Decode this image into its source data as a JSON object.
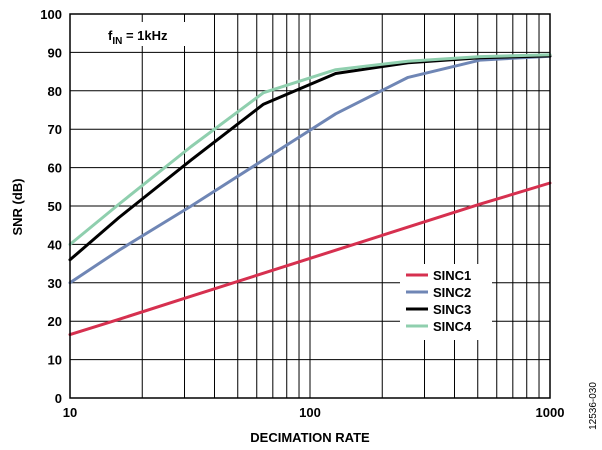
{
  "chart_data": {
    "type": "line",
    "title": "",
    "xlabel": "DECIMATION RATE",
    "ylabel": "SNR (dB)",
    "x_scale": "log",
    "xlim": [
      10,
      1000
    ],
    "ylim": [
      0,
      100
    ],
    "x_ticks": [
      10,
      100,
      1000
    ],
    "x_tick_labels": [
      "10",
      "100",
      "1000"
    ],
    "y_ticks": [
      0,
      10,
      20,
      30,
      40,
      50,
      60,
      70,
      80,
      90,
      100
    ],
    "y_tick_labels": [
      "0",
      "10",
      "20",
      "30",
      "40",
      "50",
      "60",
      "70",
      "80",
      "90",
      "100"
    ],
    "grid": true,
    "legend_position": "lower-right",
    "annotation": {
      "main": "f",
      "subscript": "IN",
      "suffix": " = 1kHz"
    },
    "figure_id": "12536-030",
    "series": [
      {
        "name": "SINC1",
        "color": "#d6304f",
        "x": [
          10,
          16,
          32,
          64,
          128,
          256,
          512,
          1000
        ],
        "y": [
          16.5,
          20.5,
          26.5,
          32.5,
          38.5,
          44.5,
          50.5,
          56
        ]
      },
      {
        "name": "SINC2",
        "color": "#6f86b5",
        "x": [
          10,
          16,
          32,
          64,
          128,
          256,
          512,
          1000
        ],
        "y": [
          30,
          38.5,
          50,
          62,
          74,
          83.5,
          88,
          89
        ]
      },
      {
        "name": "SINC3",
        "color": "#000000",
        "x": [
          10,
          16,
          32,
          64,
          128,
          256,
          512,
          1000
        ],
        "y": [
          36,
          47,
          62,
          76.5,
          84.5,
          87.3,
          88.6,
          89.1
        ]
      },
      {
        "name": "SINC4",
        "color": "#8fcfae",
        "x": [
          10,
          16,
          32,
          64,
          128,
          256,
          512,
          1000
        ],
        "y": [
          40,
          50.5,
          65.5,
          79.5,
          85.5,
          87.7,
          88.9,
          89.4
        ]
      }
    ]
  }
}
